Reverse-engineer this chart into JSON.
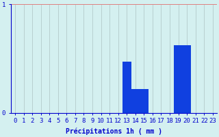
{
  "hours": [
    0,
    1,
    2,
    3,
    4,
    5,
    6,
    7,
    8,
    9,
    10,
    11,
    12,
    13,
    14,
    15,
    16,
    17,
    18,
    19,
    20,
    21,
    22,
    23
  ],
  "values": [
    0,
    0,
    0,
    0,
    0,
    0,
    0,
    0,
    0,
    0,
    0,
    0,
    0,
    0.47,
    0.22,
    0.22,
    0,
    0,
    0,
    0.62,
    0.62,
    0,
    0,
    0
  ],
  "bar_color": "#1040e0",
  "background_color": "#d4f0f0",
  "grid_color_v": "#b8d0d0",
  "grid_color_h": "#e08080",
  "axis_color": "#0000cc",
  "xlabel": "Précipitations 1h ( mm )",
  "ylim": [
    0,
    1.0
  ],
  "xlim": [
    -0.5,
    23.5
  ],
  "yticks": [
    0,
    1
  ],
  "ytick_labels": [
    "0",
    "1"
  ],
  "xlabel_fontsize": 7,
  "tick_fontsize": 6.5
}
